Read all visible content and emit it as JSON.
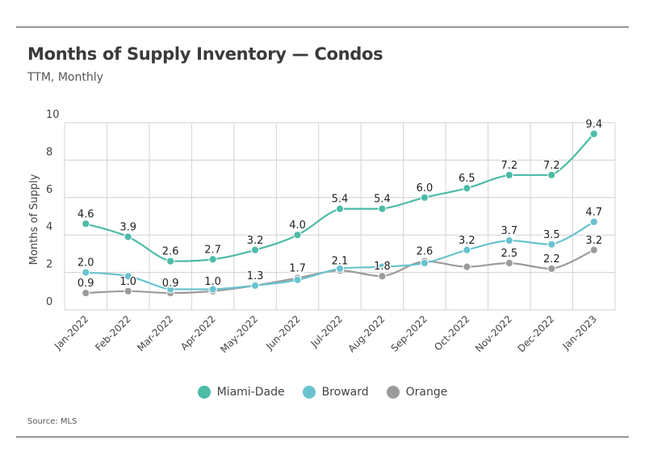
{
  "title": "Months of Supply Inventory — Condos",
  "subtitle": "TTM, Monthly",
  "source": "Source:  MLS",
  "chart_data": {
    "type": "line",
    "title": "Months of Supply Inventory — Condos",
    "subtitle": "TTM, Monthly",
    "xlabel": "",
    "ylabel": "Months of Supply",
    "ylim": [
      0,
      10
    ],
    "yticks": [
      "0",
      "2",
      "4",
      "6",
      "8",
      "10"
    ],
    "grid": true,
    "legend_position": "bottom",
    "categories": [
      "Jan-2022",
      "Feb-2022",
      "Mar-2022",
      "Apr-2022",
      "May-2022",
      "Jun-2022",
      "Jul-2022",
      "Aug-2022",
      "Sep-2022",
      "Oct-2022",
      "Nov-2022",
      "Dec-2022",
      "Jan-2023"
    ],
    "series": [
      {
        "name": "Miami-Dade",
        "color": "#4dbba7",
        "values": [
          4.6,
          3.9,
          2.6,
          2.7,
          3.2,
          4.0,
          5.4,
          5.4,
          6.0,
          6.5,
          7.2,
          7.2,
          9.4
        ],
        "labels": [
          "4.6",
          "3.9",
          "2.6",
          "2.7",
          "3.2",
          "4.0",
          "5.4",
          "5.4",
          "6.0",
          "6.5",
          "7.2",
          "7.2",
          "9.4"
        ],
        "label_indices": [
          0,
          1,
          2,
          3,
          4,
          5,
          6,
          7,
          8,
          9,
          10,
          11,
          12
        ]
      },
      {
        "name": "Broward",
        "color": "#69c3cf",
        "values": [
          2.0,
          1.8,
          1.1,
          1.1,
          1.3,
          1.6,
          2.2,
          2.3,
          2.5,
          3.2,
          3.7,
          3.5,
          4.7
        ],
        "labels": [
          "2.0",
          null,
          null,
          null,
          null,
          null,
          null,
          null,
          null,
          "3.2",
          "3.7",
          "3.5",
          "4.7"
        ],
        "label_indices": [
          0,
          9,
          10,
          11,
          12
        ]
      },
      {
        "name": "Orange",
        "color": "#9b9b9b",
        "values": [
          0.9,
          1.0,
          0.9,
          1.0,
          1.3,
          1.7,
          2.1,
          1.8,
          2.6,
          2.3,
          2.5,
          2.2,
          3.2
        ],
        "labels": [
          "0.9",
          "1.0",
          "0.9",
          "1.0",
          "1.3",
          "1.7",
          "2.1",
          "1.8",
          "2.6",
          null,
          "2.5",
          "2.2",
          "3.2"
        ],
        "label_indices": [
          0,
          1,
          2,
          3,
          4,
          5,
          6,
          7,
          8,
          10,
          11,
          12
        ]
      }
    ]
  },
  "legend": [
    {
      "label": "Miami-Dade",
      "color": "#4dbba7"
    },
    {
      "label": "Broward",
      "color": "#69c3cf"
    },
    {
      "label": "Orange",
      "color": "#9b9b9b"
    }
  ]
}
